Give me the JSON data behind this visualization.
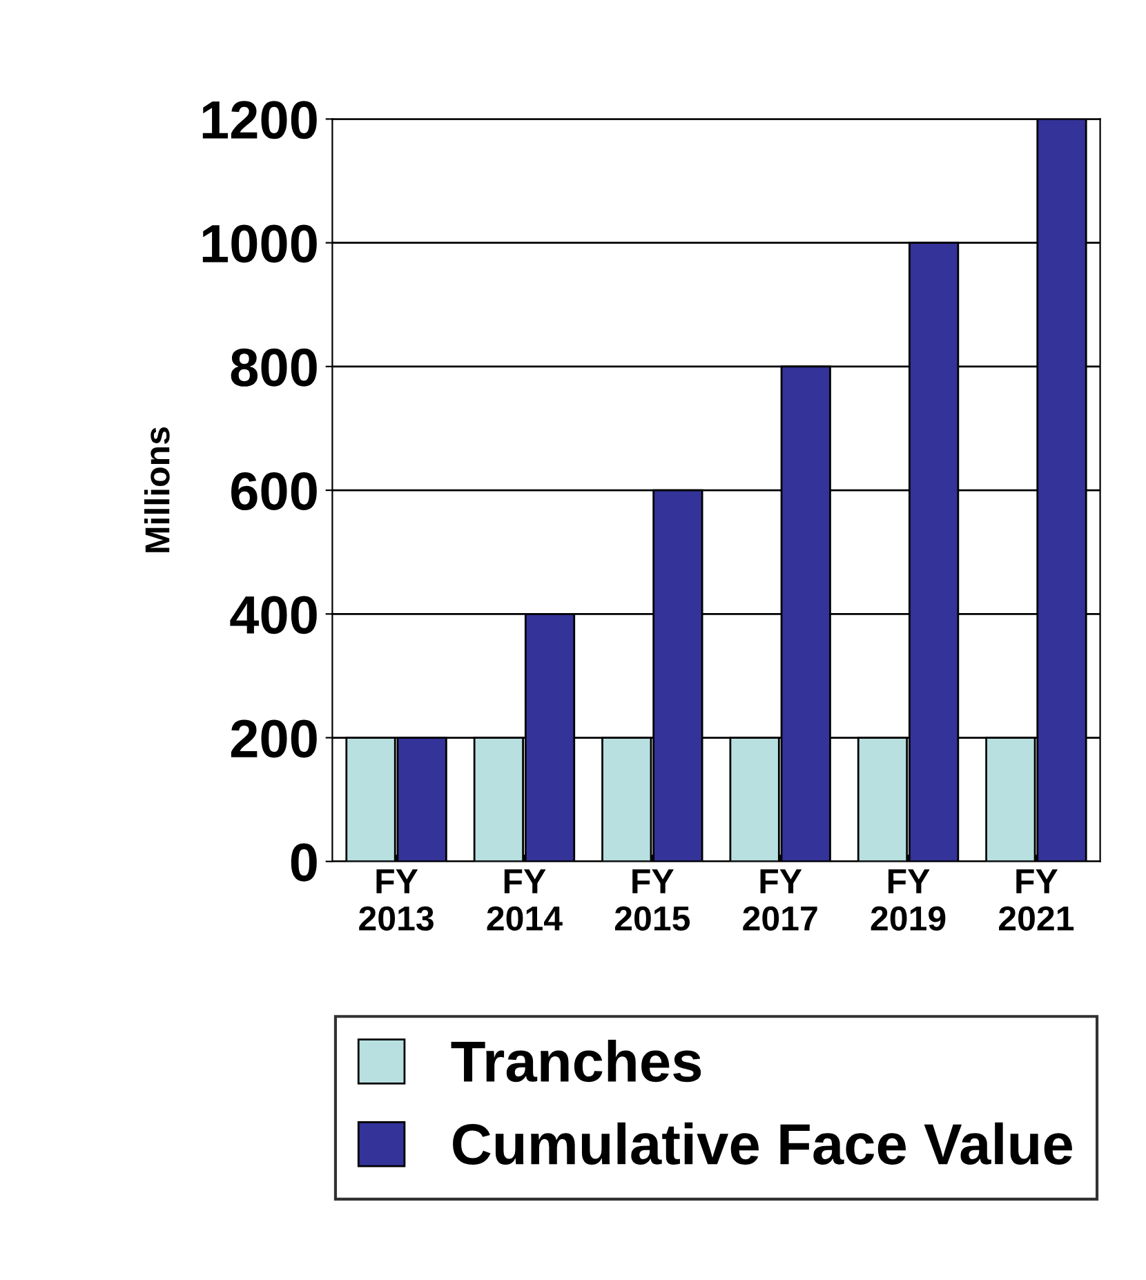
{
  "chart_data": {
    "type": "bar",
    "ylabel": "Millions",
    "categories": [
      "FY\n2013",
      "FY\n2014",
      "FY\n2015",
      "FY\n2017",
      "FY\n2019",
      "FY\n2021"
    ],
    "series": [
      {
        "name": "Tranches",
        "color": "#b8e0e0",
        "values": [
          200,
          200,
          200,
          200,
          200,
          200
        ]
      },
      {
        "name": "Cumulative Face Value",
        "color": "#333399",
        "values": [
          200,
          400,
          600,
          800,
          1000,
          1200
        ]
      }
    ],
    "ylim": [
      0,
      1200
    ],
    "yticks": [
      0,
      200,
      400,
      600,
      800,
      1000,
      1200
    ],
    "grid": "y",
    "legend": "bottom"
  }
}
